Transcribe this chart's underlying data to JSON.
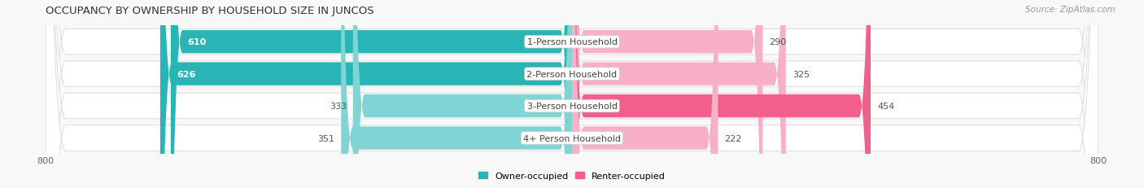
{
  "title": "OCCUPANCY BY OWNERSHIP BY HOUSEHOLD SIZE IN JUNCOS",
  "source": "Source: ZipAtlas.com",
  "categories": [
    "1-Person Household",
    "2-Person Household",
    "3-Person Household",
    "4+ Person Household"
  ],
  "owner_values": [
    610,
    626,
    333,
    351
  ],
  "renter_values": [
    290,
    325,
    454,
    222
  ],
  "owner_color_dark": "#29b5b5",
  "owner_color_light": "#80d4d4",
  "renter_color_dark": "#f0608a",
  "renter_color_light": "#f8b0c8",
  "axis_max": 800,
  "row_bg_color": "#f5f5f5",
  "row_border_color": "#e0e0e0",
  "background_color": "#f8f8f8",
  "figsize": [
    14.06,
    2.32
  ],
  "dpi": 100,
  "dark_threshold_owner": 400,
  "dark_threshold_renter": 400,
  "legend_owner": "Owner-occupied",
  "legend_renter": "Renter-occupied"
}
